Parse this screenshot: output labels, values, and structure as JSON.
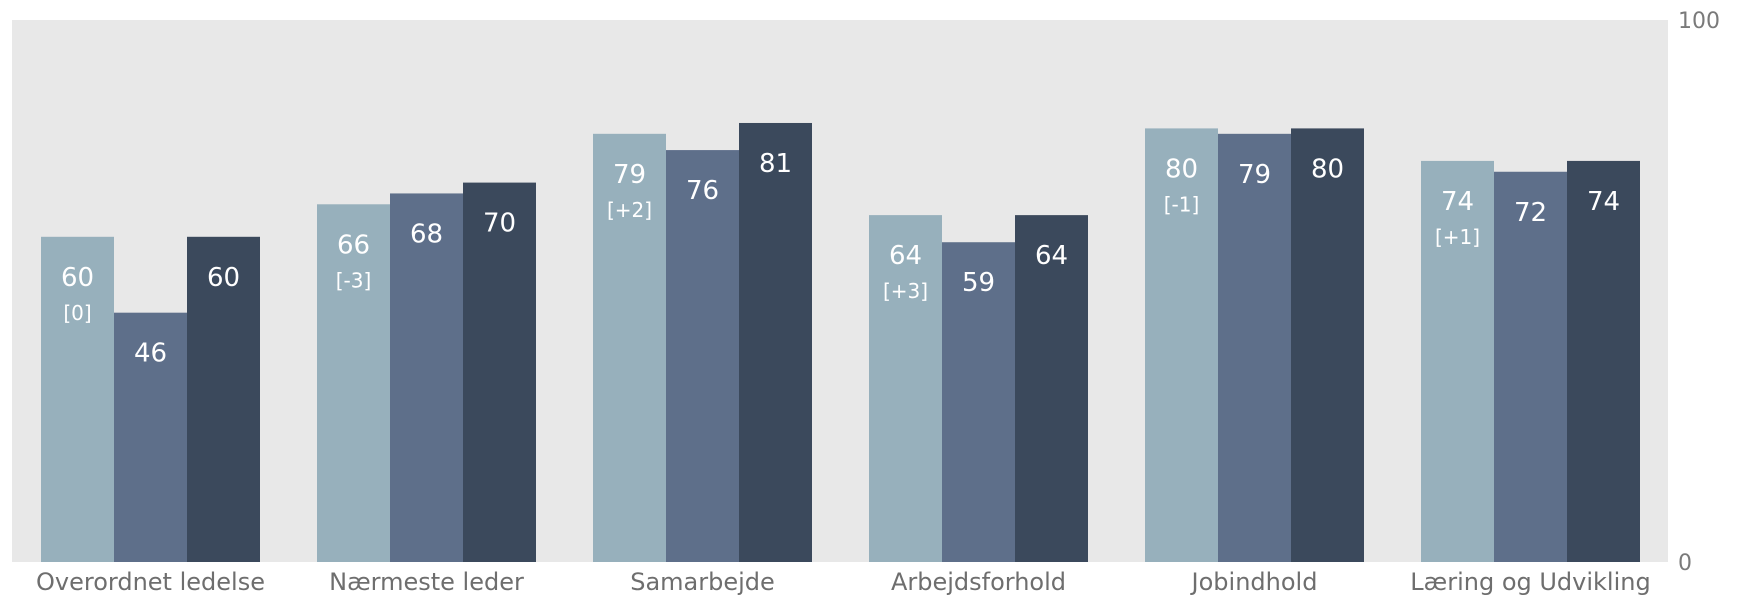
{
  "chart_data": {
    "type": "bar",
    "categories": [
      "Overordnet ledelse",
      "Nærmeste leder",
      "Samarbejde",
      "Arbejdsforhold",
      "Jobindhold",
      "Læring og Udvikling"
    ],
    "series": [
      {
        "values": [
          60,
          66,
          79,
          64,
          80,
          74
        ],
        "deltas": [
          "[0]",
          "[-3]",
          "[+2]",
          "[+3]",
          "[-1]",
          "[+1]"
        ],
        "color": "#97b0bc"
      },
      {
        "values": [
          46,
          68,
          76,
          59,
          79,
          72
        ],
        "color": "#5e6f8a"
      },
      {
        "values": [
          60,
          70,
          81,
          64,
          80,
          74
        ],
        "color": "#3b495c"
      }
    ],
    "ylim": [
      0,
      100
    ],
    "y_ticks": [
      {
        "value": 100,
        "label": "100"
      },
      {
        "value": 0,
        "label": "0"
      }
    ],
    "y_axis_side": "right",
    "grid": false,
    "legend": "none",
    "plot_background": "#e8e8e8"
  }
}
